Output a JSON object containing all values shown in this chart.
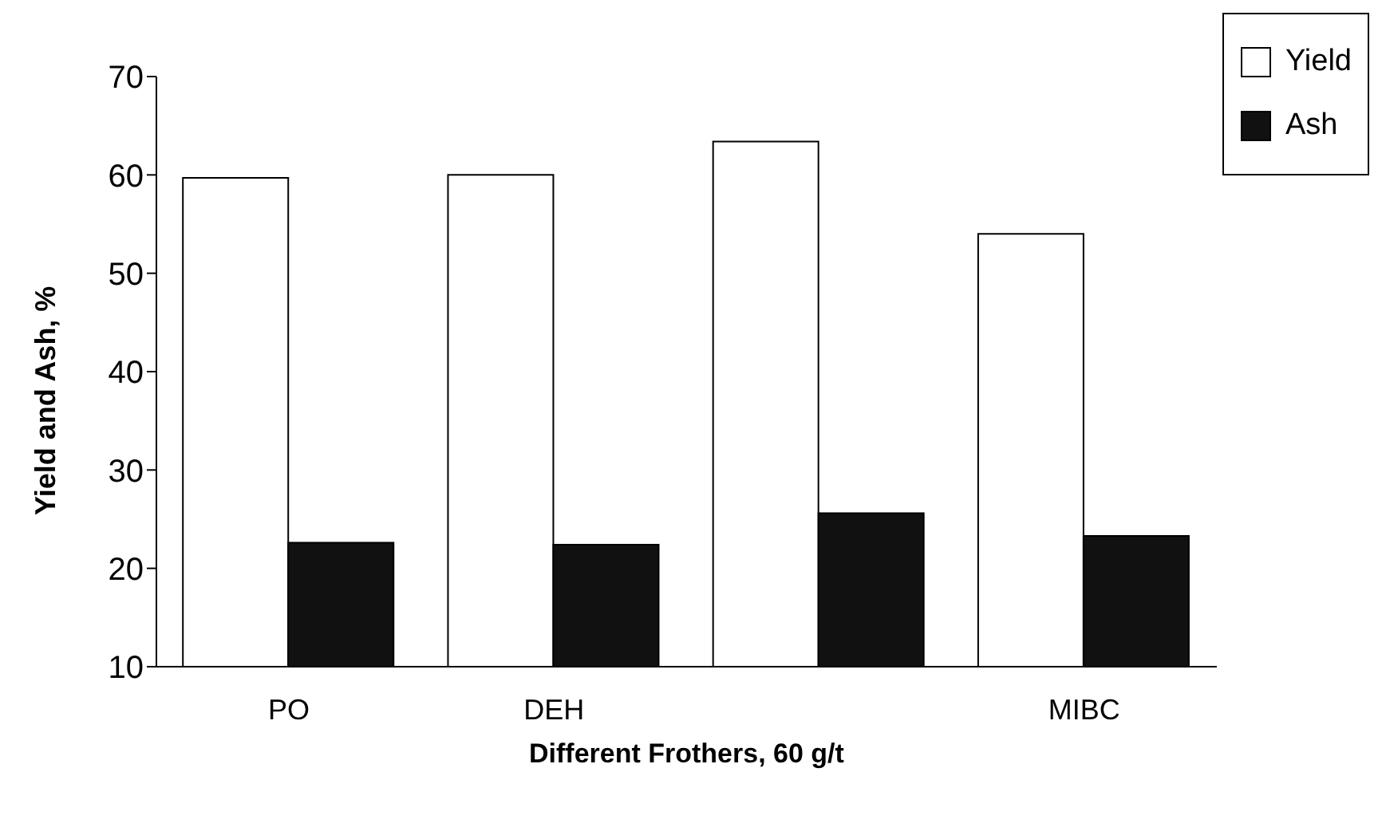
{
  "chart_data": {
    "type": "bar",
    "xlabel": "Different Frothers, 60 g/t",
    "ylabel": "Yield and Ash, %",
    "categories": [
      "PO",
      "DEH",
      null,
      "MIBC"
    ],
    "series": [
      {
        "name": "Yield",
        "color": "#ffffff",
        "values": [
          59.7,
          60.0,
          63.4,
          54.0
        ]
      },
      {
        "name": "Ash",
        "color": "#111111",
        "values": [
          22.6,
          22.4,
          25.6,
          23.3
        ]
      }
    ],
    "ylim": [
      10,
      70
    ],
    "yticks": [
      10,
      20,
      30,
      40,
      50,
      60,
      70
    ],
    "grid": false,
    "legend": "top right"
  }
}
